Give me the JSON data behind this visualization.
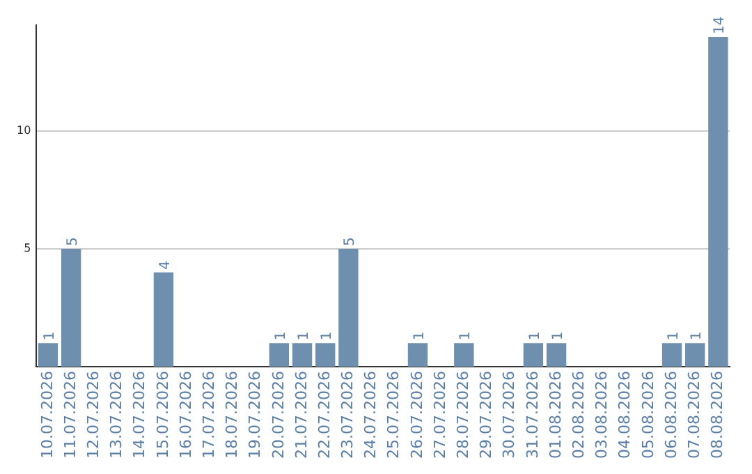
{
  "chart_data": {
    "type": "bar",
    "categories": [
      "10.07.2026",
      "11.07.2026",
      "12.07.2026",
      "13.07.2026",
      "14.07.2026",
      "15.07.2026",
      "16.07.2026",
      "17.07.2026",
      "18.07.2026",
      "19.07.2026",
      "20.07.2026",
      "21.07.2026",
      "22.07.2026",
      "23.07.2026",
      "24.07.2026",
      "25.07.2026",
      "26.07.2026",
      "27.07.2026",
      "28.07.2026",
      "29.07.2026",
      "30.07.2026",
      "31.07.2026",
      "01.08.2026",
      "02.08.2026",
      "03.08.2026",
      "04.08.2026",
      "05.08.2026",
      "06.08.2026",
      "07.08.2026",
      "08.08.2026"
    ],
    "values": [
      1,
      5,
      0,
      0,
      0,
      4,
      0,
      0,
      0,
      0,
      1,
      1,
      1,
      5,
      0,
      0,
      1,
      0,
      1,
      0,
      0,
      1,
      1,
      0,
      0,
      0,
      0,
      1,
      1,
      14
    ],
    "value_labels": [
      "1",
      "5",
      null,
      null,
      null,
      "4",
      null,
      null,
      null,
      null,
      "1",
      "1",
      "1",
      "5",
      null,
      null,
      "1",
      null,
      "1",
      null,
      null,
      "1",
      "1",
      null,
      null,
      null,
      null,
      "1",
      "1",
      "14"
    ],
    "color": "#6f8fae",
    "ylim": [
      0,
      14.5
    ],
    "yticks": [
      5,
      10
    ],
    "grid": "y",
    "legend": false
  }
}
